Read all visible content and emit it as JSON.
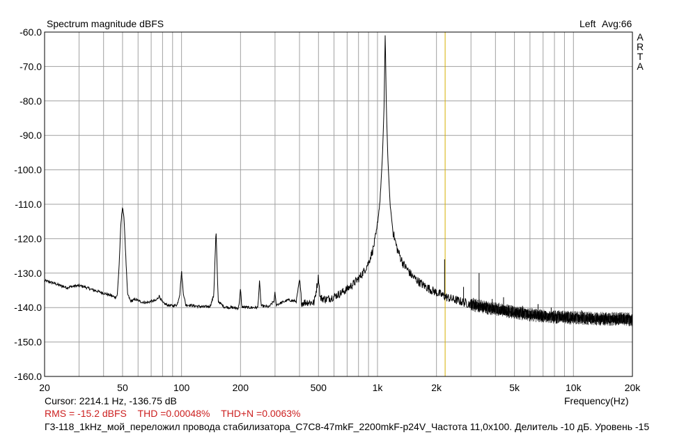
{
  "header": {
    "title": "Spectrum magnitude dBFS",
    "channel": "Left",
    "averaging": "Avg:66",
    "logo_letters": [
      "A",
      "R",
      "T",
      "A"
    ]
  },
  "footer": {
    "cursor": "Cursor:  2214.1 Hz, -136.75 dB",
    "rms": "RMS =  -15.2 dBFS",
    "thd": "THD =0.00048%",
    "thdn": "THD+N =0.0063%",
    "description": "Г3-118_1kHz_мой_переложил провода стабилизатора_C7C8-47mkF_2200mkF-p24V_Частота 11,0x100. Делитель -10 дБ. Уровень -15"
  },
  "colors": {
    "trace": "#000000",
    "grid": "#a0a0a0",
    "cursor_line": "#d4b000",
    "stats_text": "#cc1f1f"
  },
  "chart_data": {
    "type": "line",
    "title": "Spectrum magnitude dBFS",
    "xlabel": "Frequency(Hz)",
    "ylabel": "",
    "x_scale": "log",
    "xlim": [
      20,
      20000
    ],
    "ylim": [
      -160,
      -60
    ],
    "grid": true,
    "x_ticks": [
      {
        "value": 20,
        "label": "20"
      },
      {
        "value": 50,
        "label": "50"
      },
      {
        "value": 100,
        "label": "100"
      },
      {
        "value": 200,
        "label": "200"
      },
      {
        "value": 500,
        "label": "500"
      },
      {
        "value": 1000,
        "label": "1k"
      },
      {
        "value": 2000,
        "label": "2k"
      },
      {
        "value": 5000,
        "label": "5k"
      },
      {
        "value": 10000,
        "label": "10k"
      },
      {
        "value": 20000,
        "label": "20k"
      }
    ],
    "y_ticks": [
      {
        "value": -60,
        "label": "-60.0"
      },
      {
        "value": -70,
        "label": "-70.0"
      },
      {
        "value": -80,
        "label": "-80.0"
      },
      {
        "value": -90,
        "label": "-90.0"
      },
      {
        "value": -100,
        "label": "-100.0"
      },
      {
        "value": -110,
        "label": "-110.0"
      },
      {
        "value": -120,
        "label": "-120.0"
      },
      {
        "value": -130,
        "label": "-130.0"
      },
      {
        "value": -140,
        "label": "-140.0"
      },
      {
        "value": -150,
        "label": "-150.0"
      },
      {
        "value": -160,
        "label": "-160.0"
      }
    ],
    "cursor_frequency": 2214.1,
    "series": [
      {
        "points": [
          [
            20,
            -132.2
          ],
          [
            22,
            -132.8
          ],
          [
            24,
            -133.6
          ],
          [
            26,
            -134.2
          ],
          [
            28,
            -133.8
          ],
          [
            30,
            -133.6
          ],
          [
            32,
            -134.0
          ],
          [
            35,
            -134.8
          ],
          [
            38,
            -135.4
          ],
          [
            41,
            -136.0
          ],
          [
            44,
            -136.6
          ],
          [
            46,
            -137.0
          ],
          [
            47,
            -136.4
          ],
          [
            48,
            -128.0
          ],
          [
            49,
            -116.0
          ],
          [
            50,
            -110.5
          ],
          [
            51,
            -115.0
          ],
          [
            52,
            -126.0
          ],
          [
            53,
            -136.0
          ],
          [
            55,
            -138.2
          ],
          [
            58,
            -137.6
          ],
          [
            62,
            -138.3
          ],
          [
            66,
            -138.6
          ],
          [
            70,
            -138.2
          ],
          [
            74,
            -138.0
          ],
          [
            77,
            -136.6
          ],
          [
            80,
            -138.6
          ],
          [
            85,
            -139.3
          ],
          [
            90,
            -139.5
          ],
          [
            95,
            -139.2
          ],
          [
            98,
            -136.0
          ],
          [
            100,
            -129.5
          ],
          [
            102,
            -135.5
          ],
          [
            105,
            -139.2
          ],
          [
            110,
            -139.3
          ],
          [
            120,
            -139.6
          ],
          [
            130,
            -139.8
          ],
          [
            140,
            -139.6
          ],
          [
            146,
            -136.5
          ],
          [
            148,
            -127.0
          ],
          [
            150,
            -117.5
          ],
          [
            152,
            -129.0
          ],
          [
            154,
            -138.2
          ],
          [
            165,
            -139.8
          ],
          [
            180,
            -140.0
          ],
          [
            195,
            -140.2
          ],
          [
            198,
            -137.5
          ],
          [
            200,
            -134.5
          ],
          [
            203,
            -139.8
          ],
          [
            220,
            -140.0
          ],
          [
            245,
            -140.0
          ],
          [
            250,
            -132.5
          ],
          [
            255,
            -139.5
          ],
          [
            280,
            -139.8
          ],
          [
            297,
            -138.0
          ],
          [
            300,
            -135.5
          ],
          [
            304,
            -139.2
          ],
          [
            330,
            -138.4
          ],
          [
            350,
            -137.8
          ],
          [
            385,
            -138.2
          ],
          [
            400,
            -132.0
          ],
          [
            410,
            -138.6
          ],
          [
            440,
            -138.4
          ],
          [
            475,
            -138.6
          ],
          [
            500,
            -131.0
          ],
          [
            510,
            -137.2
          ],
          [
            550,
            -137.6
          ],
          [
            600,
            -136.8
          ],
          [
            650,
            -135.8
          ],
          [
            700,
            -134.6
          ],
          [
            750,
            -133.2
          ],
          [
            800,
            -131.6
          ],
          [
            850,
            -129.6
          ],
          [
            900,
            -127.0
          ],
          [
            950,
            -123.0
          ],
          [
            990,
            -118.0
          ],
          [
            1030,
            -109.0
          ],
          [
            1060,
            -96.0
          ],
          [
            1080,
            -82.0
          ],
          [
            1095,
            -60.0
          ],
          [
            1110,
            -82.0
          ],
          [
            1130,
            -97.0
          ],
          [
            1160,
            -110.0
          ],
          [
            1200,
            -118.0
          ],
          [
            1260,
            -123.0
          ],
          [
            1350,
            -127.2
          ],
          [
            1500,
            -130.8
          ],
          [
            1700,
            -133.4
          ],
          [
            1900,
            -135.0
          ],
          [
            2100,
            -136.2
          ],
          [
            2200,
            -136.7
          ],
          [
            2300,
            -137.2
          ],
          [
            2500,
            -137.8
          ],
          [
            2800,
            -138.6
          ],
          [
            3200,
            -139.4
          ],
          [
            3600,
            -140.0
          ],
          [
            4000,
            -140.4
          ],
          [
            4500,
            -140.9
          ],
          [
            5000,
            -141.4
          ],
          [
            5600,
            -141.8
          ],
          [
            6300,
            -142.2
          ],
          [
            7000,
            -142.5
          ],
          [
            8000,
            -142.7
          ],
          [
            9000,
            -142.9
          ],
          [
            10000,
            -143.0
          ],
          [
            11500,
            -143.1
          ],
          [
            13000,
            -143.2
          ],
          [
            15000,
            -143.3
          ],
          [
            17000,
            -143.3
          ],
          [
            19000,
            -143.4
          ],
          [
            20000,
            -143.4
          ]
        ]
      }
    ],
    "spurs": [
      [
        1650,
        -132.0
      ],
      [
        2200,
        -126.0
      ],
      [
        2750,
        -134.0
      ],
      [
        3300,
        -130.0
      ],
      [
        3850,
        -137.5
      ],
      [
        4400,
        -137.0
      ],
      [
        5500,
        -139.5
      ],
      [
        6600,
        -139.0
      ],
      [
        7700,
        -140.0
      ],
      [
        8800,
        -141.0
      ],
      [
        11000,
        -140.8
      ],
      [
        13200,
        -141.5
      ],
      [
        15400,
        -141.8
      ],
      [
        17600,
        -142.0
      ]
    ]
  }
}
